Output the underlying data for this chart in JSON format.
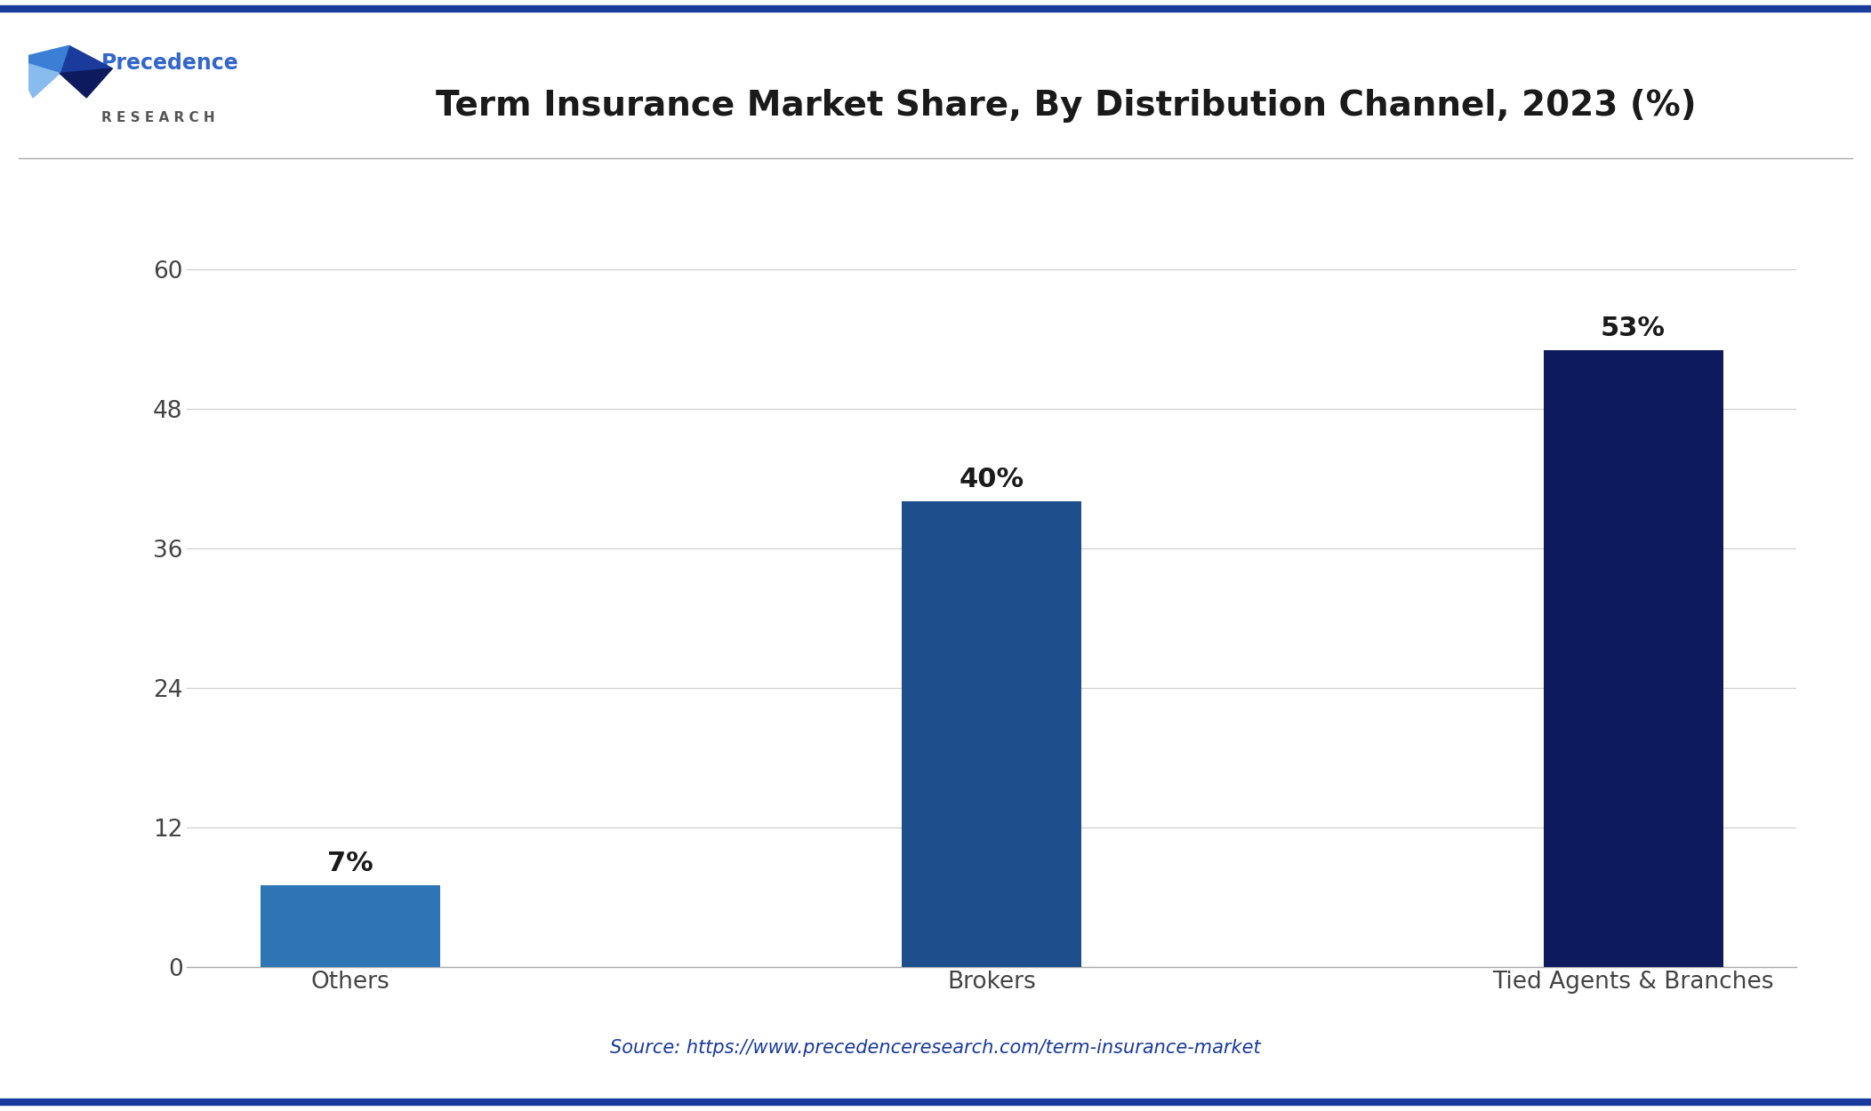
{
  "title": "Term Insurance Market Share, By Distribution Channel, 2023 (%)",
  "categories": [
    "Others",
    "Brokers",
    "Tied Agents & Branches"
  ],
  "values": [
    7,
    40,
    53
  ],
  "bar_colors": [
    "#2E75B6",
    "#1F4E8C",
    "#0D1B5E"
  ],
  "value_labels": [
    "7%",
    "40%",
    "53%"
  ],
  "ylim": [
    0,
    65
  ],
  "yticks": [
    0,
    12,
    24,
    36,
    48,
    60
  ],
  "source_text": "Source: https://www.precedenceresearch.com/term-insurance-market",
  "background_color": "#FFFFFF",
  "plot_bg_color": "#FFFFFF",
  "title_color": "#1a1a1a",
  "axis_color": "#444444",
  "grid_color": "#d0d0d0",
  "source_color": "#1A3A9C",
  "title_fontsize": 28,
  "label_fontsize": 19,
  "tick_fontsize": 19,
  "value_fontsize": 22,
  "source_fontsize": 15,
  "bar_width": 0.28,
  "top_border_color": "#1A3A9C",
  "bottom_border_color": "#1A3A9C",
  "logo_text_color": "#3366CC",
  "logo_research_color": "#555555",
  "precedence_colors": [
    "#1A3A9C",
    "#3366CC",
    "#5599EE"
  ]
}
